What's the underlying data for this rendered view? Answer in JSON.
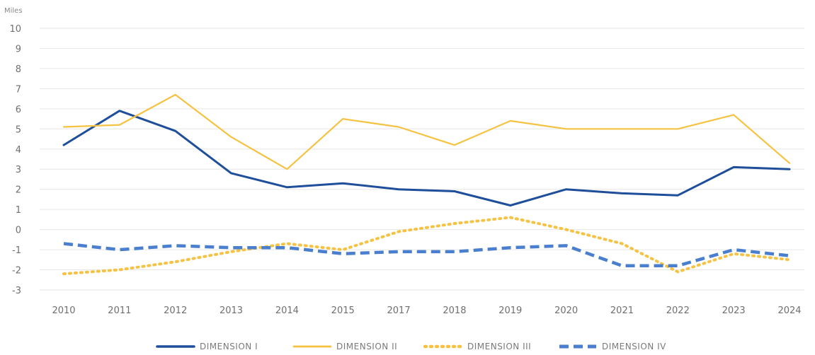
{
  "chart_data": {
    "type": "line",
    "ylabel": "Miles",
    "ylim": [
      -3,
      10
    ],
    "yticks": [
      10,
      9,
      8,
      7,
      6,
      5,
      4,
      3,
      2,
      1,
      0,
      -1,
      -2,
      -3
    ],
    "categories": [
      "2010",
      "2011",
      "2012",
      "2013",
      "2014",
      "2015",
      "2017",
      "2018",
      "2019",
      "2020",
      "2021",
      "2022",
      "2023",
      "2024"
    ],
    "grid": true,
    "legend_position": "bottom",
    "series": [
      {
        "name": "DIMENSION I",
        "color": "#1f4e9b",
        "style": "solid",
        "values": [
          4.2,
          5.9,
          4.9,
          2.8,
          2.1,
          2.3,
          2.0,
          1.9,
          1.2,
          2.0,
          1.8,
          1.7,
          3.1,
          3.0
        ]
      },
      {
        "name": "DIMENSION II",
        "color": "#f5c242",
        "style": "solid",
        "values": [
          5.1,
          5.2,
          6.7,
          4.6,
          3.0,
          5.5,
          5.1,
          4.2,
          5.4,
          5.0,
          5.0,
          5.0,
          5.7,
          3.3
        ]
      },
      {
        "name": "DIMENSION III",
        "color": "#f5c242",
        "style": "dotted",
        "values": [
          -2.2,
          -2.0,
          -1.6,
          -1.1,
          -0.7,
          -1.0,
          -0.1,
          0.3,
          0.6,
          0.0,
          -0.7,
          -2.1,
          -1.2,
          -1.5
        ]
      },
      {
        "name": "DIMENSION IV",
        "color": "#4a7fcf",
        "style": "dashed",
        "values": [
          -0.7,
          -1.0,
          -0.8,
          -0.9,
          -0.9,
          -1.2,
          -1.1,
          -1.1,
          -0.9,
          -0.8,
          -1.8,
          -1.8,
          -1.0,
          -1.3
        ]
      }
    ]
  }
}
